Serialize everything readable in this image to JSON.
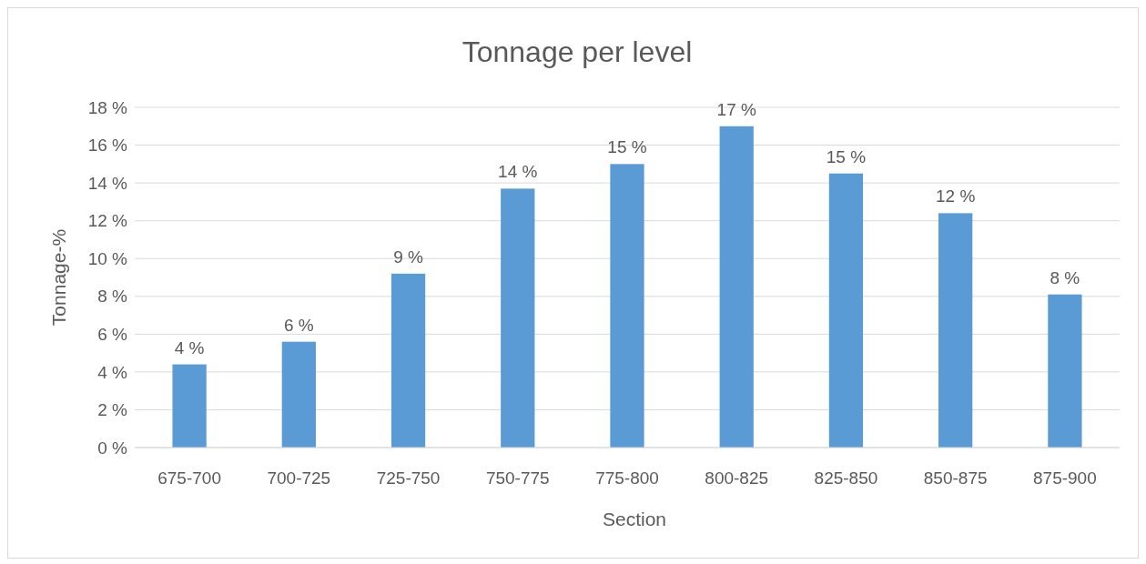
{
  "chart_data": {
    "type": "bar",
    "title": "Tonnage per level",
    "xlabel": "Section",
    "ylabel": "Tonnage-%",
    "categories": [
      "675-700",
      "700-725",
      "725-750",
      "750-775",
      "775-800",
      "800-825",
      "825-850",
      "850-875",
      "875-900"
    ],
    "values": [
      4.4,
      5.6,
      9.2,
      13.7,
      15.0,
      17.0,
      14.5,
      12.4,
      8.1
    ],
    "value_labels": [
      "4 %",
      "6 %",
      "9 %",
      "14 %",
      "15 %",
      "17 %",
      "15 %",
      "12 %",
      "8 %"
    ],
    "color": "#5b9bd5",
    "ylim": [
      0,
      18
    ],
    "yticks": [
      {
        "value": 0,
        "label": "0 %"
      },
      {
        "value": 2,
        "label": "2 %"
      },
      {
        "value": 4,
        "label": "4 %"
      },
      {
        "value": 6,
        "label": "6 %"
      },
      {
        "value": 8,
        "label": "8 %"
      },
      {
        "value": 10,
        "label": "10 %"
      },
      {
        "value": 12,
        "label": "12 %"
      },
      {
        "value": 14,
        "label": "14 %"
      },
      {
        "value": 16,
        "label": "16 %"
      },
      {
        "value": 18,
        "label": "18 %"
      }
    ],
    "grid": "y"
  }
}
